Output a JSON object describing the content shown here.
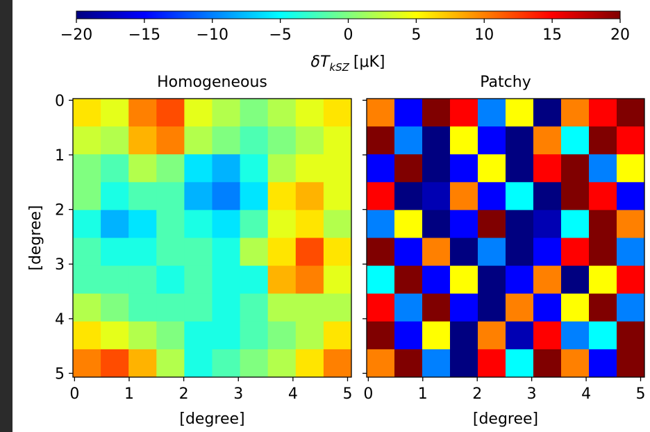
{
  "colorbar": {
    "label": {
      "main": "δT",
      "sub": "kSZ",
      "unit": "[μK]"
    },
    "colormap": "jet",
    "lim": [
      -20,
      20
    ],
    "ticks": [
      {
        "value": -20,
        "label": "−20"
      },
      {
        "value": -15,
        "label": "−15"
      },
      {
        "value": -10,
        "label": "−10"
      },
      {
        "value": -5,
        "label": "−5"
      },
      0,
      5,
      10,
      15,
      20
    ]
  },
  "chart_data": [
    {
      "type": "heatmap",
      "title": "Homogeneous",
      "xlabel": "[degree]",
      "ylabel": "[degree]",
      "ytick_labels": true,
      "xlim": [
        -0.03,
        5.07
      ],
      "ylim": [
        -0.03,
        5.07
      ],
      "xticks": [
        0,
        1,
        2,
        3,
        4,
        5
      ],
      "yticks": [
        0,
        1,
        2,
        3,
        4,
        5
      ],
      "z": [
        [
          6,
          4,
          10,
          12,
          4,
          2,
          0,
          2,
          4,
          6
        ],
        [
          3,
          2,
          8,
          10,
          2,
          0,
          -2,
          0,
          2,
          4
        ],
        [
          0,
          -2,
          2,
          0,
          -6,
          -8,
          -4,
          2,
          4,
          4
        ],
        [
          0,
          -4,
          -2,
          -2,
          -8,
          -10,
          -6,
          6,
          8,
          4
        ],
        [
          -4,
          -8,
          -6,
          -2,
          -4,
          -6,
          -2,
          4,
          6,
          2
        ],
        [
          -2,
          -4,
          -4,
          -2,
          -2,
          -4,
          2,
          6,
          12,
          6
        ],
        [
          -2,
          -2,
          -2,
          -4,
          -2,
          -4,
          -4,
          8,
          10,
          4
        ],
        [
          2,
          0,
          -2,
          -2,
          -2,
          -4,
          -2,
          2,
          2,
          2
        ],
        [
          6,
          4,
          2,
          0,
          -4,
          -4,
          -2,
          0,
          2,
          6
        ],
        [
          10,
          12,
          8,
          2,
          -4,
          -2,
          0,
          2,
          6,
          10
        ]
      ]
    },
    {
      "type": "heatmap",
      "title": "Patchy",
      "xlabel": "[degree]",
      "ytick_labels": false,
      "xlim": [
        -0.03,
        5.07
      ],
      "ylim": [
        -0.03,
        5.07
      ],
      "xticks": [
        0,
        1,
        2,
        3,
        4,
        5
      ],
      "yticks": [
        0,
        1,
        2,
        3,
        4,
        5
      ],
      "z": [
        [
          10,
          -15,
          20,
          15,
          -10,
          5,
          -20,
          10,
          15,
          20
        ],
        [
          20,
          -10,
          -20,
          5,
          -15,
          -20,
          10,
          -5,
          20,
          15
        ],
        [
          -15,
          20,
          -20,
          -15,
          5,
          -20,
          15,
          20,
          -10,
          5
        ],
        [
          15,
          -20,
          -18,
          10,
          -15,
          -5,
          -20,
          20,
          15,
          -15
        ],
        [
          -10,
          5,
          -20,
          -15,
          20,
          -20,
          -18,
          -5,
          20,
          10
        ],
        [
          20,
          -15,
          10,
          -20,
          -10,
          -20,
          -15,
          15,
          20,
          -10
        ],
        [
          -5,
          20,
          -15,
          5,
          -20,
          -15,
          10,
          -20,
          5,
          15
        ],
        [
          15,
          -10,
          20,
          -15,
          -20,
          10,
          -15,
          5,
          20,
          -10
        ],
        [
          20,
          -15,
          5,
          -20,
          10,
          -18,
          15,
          -10,
          -5,
          20
        ],
        [
          10,
          20,
          -10,
          -20,
          15,
          -5,
          20,
          10,
          -15,
          20
        ]
      ]
    }
  ]
}
